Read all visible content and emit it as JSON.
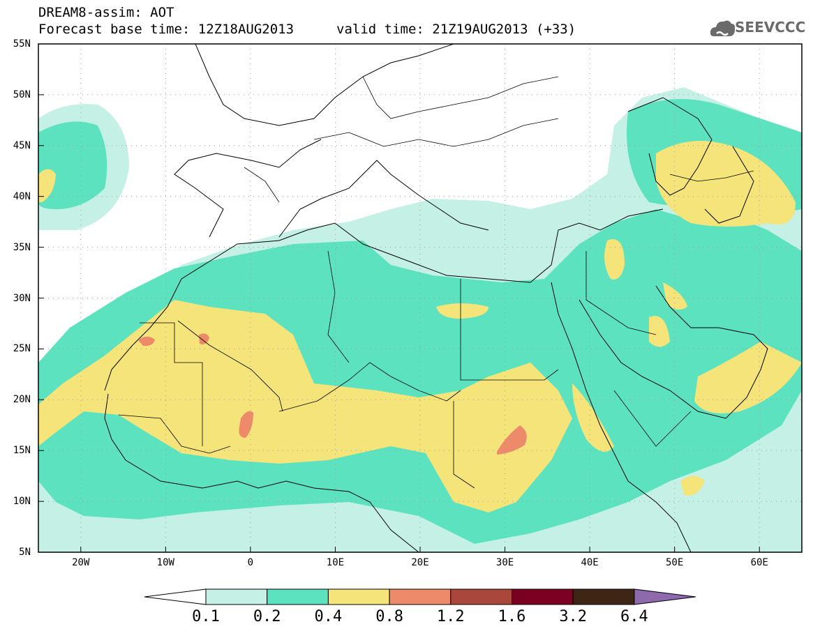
{
  "title": {
    "line1": "DREAM8-assim: AOT",
    "base_time": "Forecast base time: 12Z18AUG2013",
    "valid_time": "valid time: 21Z19AUG2013 (+33)"
  },
  "logo": {
    "text": "SEEVCCC",
    "icon": "cloud-logo-icon",
    "color": "#6a6a6a"
  },
  "map": {
    "lon_range": [
      -25,
      65
    ],
    "lat_range": [
      5,
      55
    ],
    "lat_labels": [
      "55N",
      "50N",
      "45N",
      "40N",
      "35N",
      "30N",
      "25N",
      "20N",
      "15N",
      "10N",
      "5N"
    ],
    "lon_labels": [
      "20W",
      "10W",
      "0",
      "10E",
      "20E",
      "30E",
      "40E",
      "50E",
      "60E"
    ],
    "gridlines": "dotted"
  },
  "colorbar": {
    "labels": [
      "0.1",
      "0.2",
      "0.4",
      "0.8",
      "1.2",
      "1.6",
      "3.2",
      "6.4"
    ],
    "colors": [
      "#ffffff",
      "#c4f0e6",
      "#5de2bf",
      "#f5e47a",
      "#ec8a6a",
      "#a8473a",
      "#7a0022",
      "#3d2714",
      "#8e6aad"
    ]
  }
}
